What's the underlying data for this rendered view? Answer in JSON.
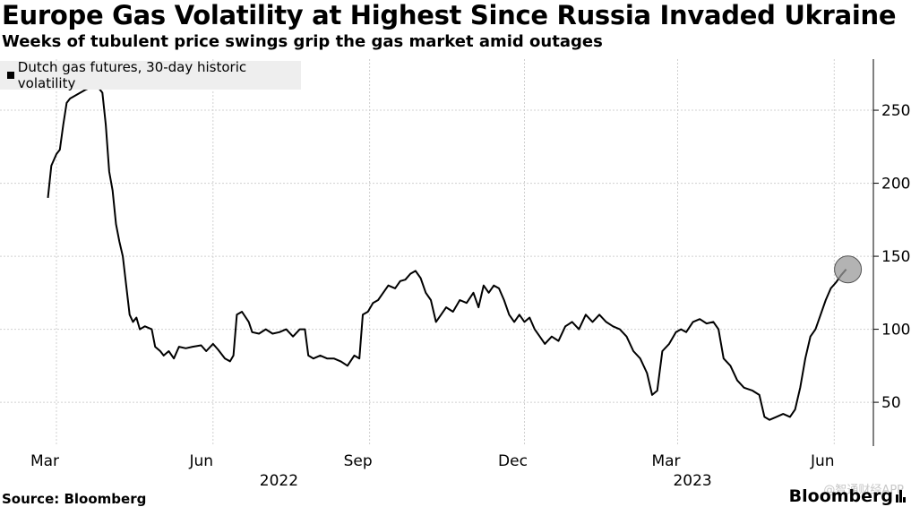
{
  "header": {
    "title": "Europe Gas Volatility at Highest Since Russia Invaded Ukraine",
    "subtitle": "Weeks of tubulent price swings grip the gas market amid outages"
  },
  "footer": {
    "source": "Source: Bloomberg",
    "brand": "Bloomberg",
    "watermark": "@智通财经APP"
  },
  "chart_data": {
    "type": "line",
    "legend_position": "top-left",
    "grid": true,
    "ylim": [
      20,
      285
    ],
    "y_ticks": [
      50,
      100,
      150,
      200,
      250
    ],
    "x_ticks": [
      {
        "label": "Mar",
        "date": "2022-03-01"
      },
      {
        "label": "Jun",
        "date": "2022-06-01"
      },
      {
        "label": "Sep",
        "date": "2022-09-01"
      },
      {
        "label": "Dec",
        "date": "2022-12-01"
      },
      {
        "label": "Mar",
        "date": "2023-03-01"
      },
      {
        "label": "Jun",
        "date": "2023-06-01"
      }
    ],
    "year_labels": [
      {
        "label": "2022",
        "date": "2022-07-15"
      },
      {
        "label": "2023",
        "date": "2023-03-15"
      }
    ],
    "highlight_last_point": true,
    "series": [
      {
        "name": "Dutch gas futures, 30-day historic volatility",
        "color": "#000000",
        "points": [
          [
            "2022-02-24",
            190
          ],
          [
            "2022-02-26",
            212
          ],
          [
            "2022-03-01",
            220
          ],
          [
            "2022-03-03",
            223
          ],
          [
            "2022-03-05",
            240
          ],
          [
            "2022-03-07",
            255
          ],
          [
            "2022-03-09",
            258
          ],
          [
            "2022-03-12",
            260
          ],
          [
            "2022-03-15",
            262
          ],
          [
            "2022-03-18",
            264
          ],
          [
            "2022-03-22",
            266
          ],
          [
            "2022-03-26",
            265
          ],
          [
            "2022-03-28",
            262
          ],
          [
            "2022-03-30",
            240
          ],
          [
            "2022-04-01",
            208
          ],
          [
            "2022-04-03",
            195
          ],
          [
            "2022-04-05",
            172
          ],
          [
            "2022-04-07",
            160
          ],
          [
            "2022-04-09",
            150
          ],
          [
            "2022-04-11",
            130
          ],
          [
            "2022-04-13",
            110
          ],
          [
            "2022-04-15",
            105
          ],
          [
            "2022-04-17",
            108
          ],
          [
            "2022-04-19",
            100
          ],
          [
            "2022-04-22",
            102
          ],
          [
            "2022-04-26",
            100
          ],
          [
            "2022-04-28",
            88
          ],
          [
            "2022-05-01",
            85
          ],
          [
            "2022-05-03",
            82
          ],
          [
            "2022-05-06",
            85
          ],
          [
            "2022-05-09",
            80
          ],
          [
            "2022-05-12",
            88
          ],
          [
            "2022-05-16",
            87
          ],
          [
            "2022-05-20",
            88
          ],
          [
            "2022-05-25",
            89
          ],
          [
            "2022-05-28",
            85
          ],
          [
            "2022-06-01",
            90
          ],
          [
            "2022-06-04",
            86
          ],
          [
            "2022-06-08",
            80
          ],
          [
            "2022-06-11",
            78
          ],
          [
            "2022-06-13",
            82
          ],
          [
            "2022-06-15",
            110
          ],
          [
            "2022-06-18",
            112
          ],
          [
            "2022-06-22",
            105
          ],
          [
            "2022-06-24",
            98
          ],
          [
            "2022-06-28",
            97
          ],
          [
            "2022-07-02",
            100
          ],
          [
            "2022-07-06",
            97
          ],
          [
            "2022-07-10",
            98
          ],
          [
            "2022-07-14",
            100
          ],
          [
            "2022-07-18",
            95
          ],
          [
            "2022-07-22",
            100
          ],
          [
            "2022-07-25",
            100
          ],
          [
            "2022-07-27",
            82
          ],
          [
            "2022-07-30",
            80
          ],
          [
            "2022-08-03",
            82
          ],
          [
            "2022-08-07",
            80
          ],
          [
            "2022-08-11",
            80
          ],
          [
            "2022-08-15",
            78
          ],
          [
            "2022-08-19",
            75
          ],
          [
            "2022-08-23",
            82
          ],
          [
            "2022-08-26",
            80
          ],
          [
            "2022-08-28",
            110
          ],
          [
            "2022-08-31",
            112
          ],
          [
            "2022-09-03",
            118
          ],
          [
            "2022-09-06",
            120
          ],
          [
            "2022-09-09",
            125
          ],
          [
            "2022-09-12",
            130
          ],
          [
            "2022-09-16",
            128
          ],
          [
            "2022-09-19",
            133
          ],
          [
            "2022-09-22",
            134
          ],
          [
            "2022-09-25",
            138
          ],
          [
            "2022-09-28",
            140
          ],
          [
            "2022-10-01",
            135
          ],
          [
            "2022-10-04",
            125
          ],
          [
            "2022-10-07",
            120
          ],
          [
            "2022-10-10",
            105
          ],
          [
            "2022-10-13",
            110
          ],
          [
            "2022-10-16",
            115
          ],
          [
            "2022-10-20",
            112
          ],
          [
            "2022-10-24",
            120
          ],
          [
            "2022-10-28",
            118
          ],
          [
            "2022-11-01",
            125
          ],
          [
            "2022-11-04",
            115
          ],
          [
            "2022-11-07",
            130
          ],
          [
            "2022-11-10",
            125
          ],
          [
            "2022-11-13",
            130
          ],
          [
            "2022-11-16",
            128
          ],
          [
            "2022-11-19",
            120
          ],
          [
            "2022-11-22",
            110
          ],
          [
            "2022-11-25",
            105
          ],
          [
            "2022-11-28",
            110
          ],
          [
            "2022-12-01",
            105
          ],
          [
            "2022-12-04",
            108
          ],
          [
            "2022-12-07",
            100
          ],
          [
            "2022-12-10",
            95
          ],
          [
            "2022-12-13",
            90
          ],
          [
            "2022-12-17",
            95
          ],
          [
            "2022-12-21",
            92
          ],
          [
            "2022-12-25",
            102
          ],
          [
            "2022-12-29",
            105
          ],
          [
            "2023-01-02",
            100
          ],
          [
            "2023-01-06",
            110
          ],
          [
            "2023-01-10",
            105
          ],
          [
            "2023-01-14",
            110
          ],
          [
            "2023-01-18",
            105
          ],
          [
            "2023-01-22",
            102
          ],
          [
            "2023-01-26",
            100
          ],
          [
            "2023-01-30",
            95
          ],
          [
            "2023-02-03",
            85
          ],
          [
            "2023-02-07",
            80
          ],
          [
            "2023-02-11",
            70
          ],
          [
            "2023-02-14",
            55
          ],
          [
            "2023-02-17",
            58
          ],
          [
            "2023-02-20",
            85
          ],
          [
            "2023-02-24",
            90
          ],
          [
            "2023-02-28",
            98
          ],
          [
            "2023-03-03",
            100
          ],
          [
            "2023-03-06",
            98
          ],
          [
            "2023-03-10",
            105
          ],
          [
            "2023-03-14",
            107
          ],
          [
            "2023-03-18",
            104
          ],
          [
            "2023-03-22",
            105
          ],
          [
            "2023-03-25",
            100
          ],
          [
            "2023-03-28",
            80
          ],
          [
            "2023-04-01",
            75
          ],
          [
            "2023-04-05",
            65
          ],
          [
            "2023-04-09",
            60
          ],
          [
            "2023-04-14",
            58
          ],
          [
            "2023-04-18",
            55
          ],
          [
            "2023-04-21",
            40
          ],
          [
            "2023-04-24",
            38
          ],
          [
            "2023-04-28",
            40
          ],
          [
            "2023-05-02",
            42
          ],
          [
            "2023-05-06",
            40
          ],
          [
            "2023-05-09",
            45
          ],
          [
            "2023-05-12",
            60
          ],
          [
            "2023-05-15",
            80
          ],
          [
            "2023-05-18",
            95
          ],
          [
            "2023-05-21",
            100
          ],
          [
            "2023-05-24",
            110
          ],
          [
            "2023-05-27",
            120
          ],
          [
            "2023-05-30",
            128
          ],
          [
            "2023-06-02",
            132
          ],
          [
            "2023-06-05",
            137
          ],
          [
            "2023-06-08",
            141
          ]
        ]
      }
    ]
  }
}
